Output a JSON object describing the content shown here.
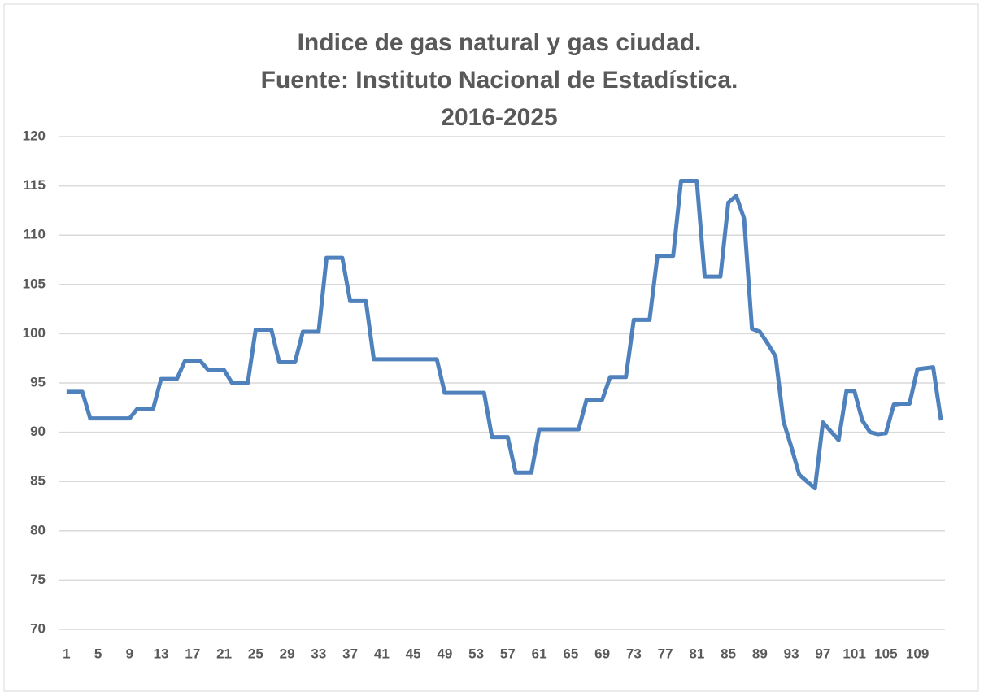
{
  "chart_data": {
    "type": "line",
    "title": [
      "Indice de gas natural y gas ciudad.",
      "Fuente: Instituto Nacional de Estadística.",
      "2016-2025"
    ],
    "categories": [
      1,
      null,
      null,
      null,
      5,
      null,
      null,
      null,
      9,
      null,
      null,
      null,
      13,
      null,
      null,
      null,
      17,
      null,
      null,
      null,
      21,
      null,
      null,
      null,
      25,
      null,
      null,
      null,
      29,
      null,
      null,
      null,
      33,
      null,
      null,
      null,
      37,
      null,
      null,
      null,
      41,
      null,
      null,
      null,
      45,
      null,
      null,
      null,
      49,
      null,
      null,
      null,
      53,
      null,
      null,
      null,
      57,
      null,
      null,
      null,
      61,
      null,
      null,
      null,
      65,
      null,
      null,
      null,
      69,
      null,
      null,
      null,
      73,
      null,
      null,
      null,
      77,
      null,
      null,
      null,
      81,
      null,
      null,
      null,
      85,
      null,
      null,
      null,
      89,
      null,
      null,
      null,
      93,
      null,
      null,
      null,
      97,
      null,
      null,
      null,
      101,
      null,
      null,
      null,
      105,
      null,
      null,
      null,
      109,
      null,
      null,
      null
    ],
    "series": [
      {
        "color": "#4f81bd",
        "values": [
          94.1,
          94.1,
          94.1,
          91.4,
          91.4,
          91.4,
          91.4,
          91.4,
          91.4,
          92.4,
          92.4,
          92.4,
          95.4,
          95.4,
          95.4,
          97.2,
          97.2,
          97.2,
          96.3,
          96.3,
          96.3,
          95.0,
          95.0,
          95.0,
          100.4,
          100.4,
          100.4,
          97.1,
          97.1,
          97.1,
          100.2,
          100.2,
          100.2,
          107.7,
          107.7,
          107.7,
          103.3,
          103.3,
          103.3,
          97.4,
          97.4,
          97.4,
          97.4,
          97.4,
          97.4,
          97.4,
          97.4,
          97.4,
          94.0,
          94.0,
          94.0,
          94.0,
          94.0,
          94.0,
          89.5,
          89.5,
          89.5,
          85.9,
          85.9,
          85.9,
          90.3,
          90.3,
          90.3,
          90.3,
          90.3,
          90.3,
          93.3,
          93.3,
          93.3,
          95.6,
          95.6,
          95.6,
          101.4,
          101.4,
          101.4,
          107.9,
          107.9,
          107.9,
          115.5,
          115.5,
          115.5,
          105.8,
          105.8,
          105.8,
          113.3,
          114.0,
          111.7,
          100.5,
          100.2,
          99.0,
          97.7,
          91.1,
          88.5,
          85.7,
          85.0,
          84.3,
          91.0,
          90.1,
          89.2,
          94.2,
          94.2,
          91.2,
          90.0,
          89.8,
          89.9,
          92.8,
          92.9,
          92.9,
          96.4,
          96.5,
          96.6,
          91.2
        ]
      }
    ],
    "ylim": [
      70,
      120
    ],
    "yticks": [
      70,
      75,
      80,
      85,
      90,
      95,
      100,
      105,
      110,
      115,
      120
    ],
    "grid": true
  }
}
